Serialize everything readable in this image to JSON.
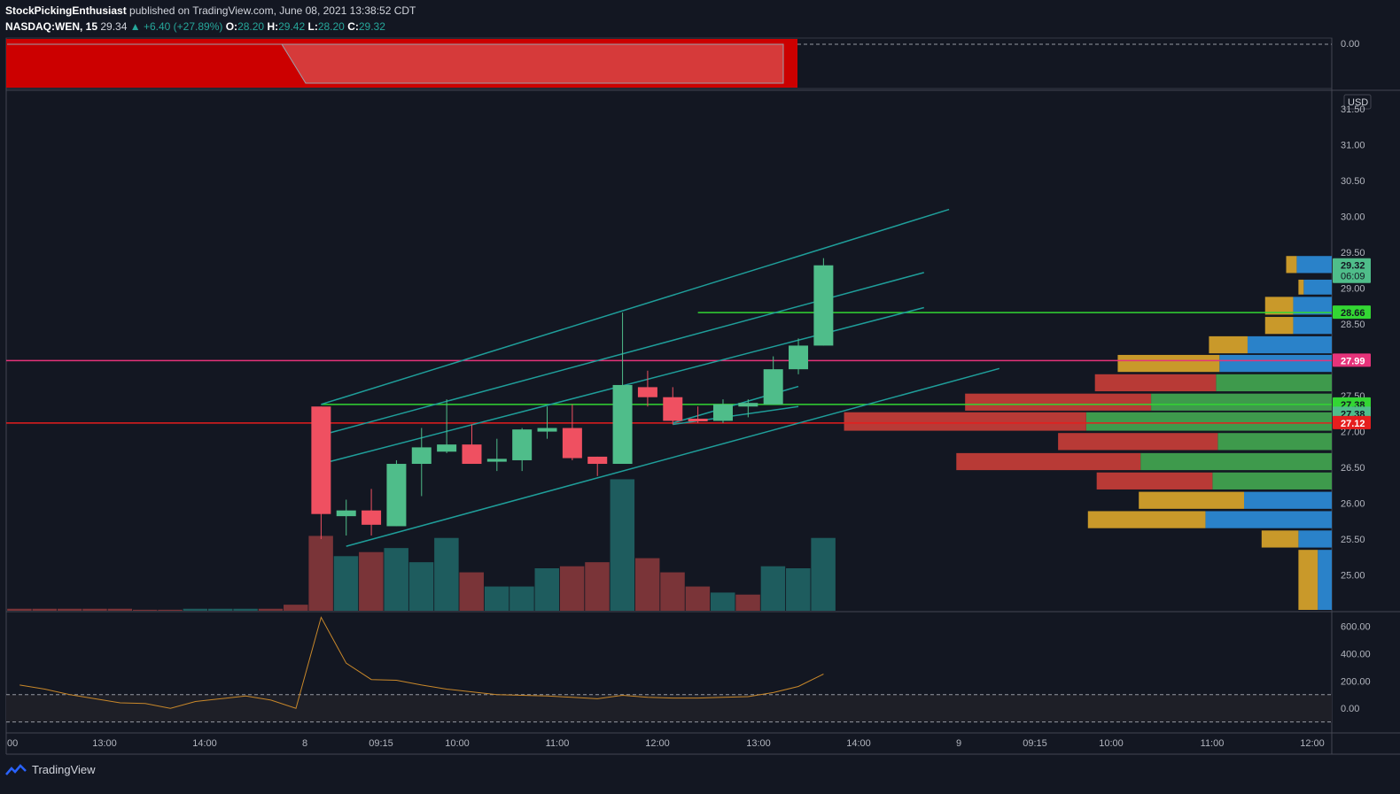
{
  "header": {
    "author": "StockPickingEnthusiast",
    "published": "published on TradingView.com, June 08, 2021 13:38:52 CDT",
    "symbol": "NASDAQ:WEN, 15",
    "last": "29.34",
    "change": "+6.40 (+27.89%)",
    "o_label": "O:",
    "o_value": "28.20",
    "h_label": "H:",
    "h_value": "29.42",
    "l_label": "L:",
    "l_value": "28.20",
    "c_label": "C:",
    "c_value": "29.32"
  },
  "footer": {
    "brand": "TradingView",
    "logo_icon": "tradingview-logo-icon"
  },
  "colors": {
    "bg": "#131722",
    "up": "#4fbd8a",
    "down": "#ef5061",
    "vol_up": "#1e5c5e",
    "vol_down": "#7a3438",
    "channel": "#1f9e9a",
    "level_green": "#33d633",
    "level_pink": "#e6337a",
    "level_red": "#e61e1e",
    "vp_red": "#b83a36",
    "vp_green": "#3e9a4c",
    "vp_gold": "#c9992a",
    "vp_blue": "#2a82c9"
  },
  "chart_data": {
    "type": "candlestick",
    "currency": "USD",
    "y_ticks": [
      "31.50",
      "31.00",
      "30.50",
      "30.00",
      "29.50",
      "29.00",
      "28.50",
      "28.00",
      "27.50",
      "27.00",
      "26.50",
      "26.00",
      "25.50",
      "25.00"
    ],
    "ylim": [
      24.5,
      31.75
    ],
    "x_ticks": [
      "00",
      "13:00",
      "14:00",
      "8",
      "09:15",
      "10:00",
      "11:00",
      "12:00",
      "13:00",
      "14:00",
      "9",
      "09:15",
      "10:00",
      "11:00",
      "12:00"
    ],
    "price_labels": [
      {
        "text": "29.32",
        "sub": "06:09",
        "price": 29.32,
        "color": "#4fbd8a"
      },
      {
        "text": "28.66",
        "price": 28.66,
        "color": "#33d633"
      },
      {
        "text": "27.99",
        "price": 27.99,
        "color": "#e6337a"
      },
      {
        "text": "27.38",
        "price": 27.38,
        "color": "#33d633"
      },
      {
        "text": "27.38",
        "price": 27.25,
        "color": "#4fbd8a"
      },
      {
        "text": "27.12",
        "price": 27.12,
        "color": "#e61e1e"
      }
    ],
    "levels": [
      {
        "price": 28.66,
        "color": "#33d633",
        "from": 27
      },
      {
        "price": 27.99,
        "color": "#e6337a",
        "from": 0
      },
      {
        "price": 27.38,
        "color": "#33d633",
        "from": 12
      },
      {
        "price": 27.12,
        "color": "#e61e1e",
        "from": 0
      }
    ],
    "candles": [
      {
        "t": 12,
        "o": 27.35,
        "h": 27.35,
        "l": 25.5,
        "c": 25.85
      },
      {
        "t": 13,
        "o": 25.82,
        "h": 26.05,
        "l": 25.55,
        "c": 25.9
      },
      {
        "t": 14,
        "o": 25.9,
        "h": 26.2,
        "l": 25.55,
        "c": 25.7
      },
      {
        "t": 15,
        "o": 25.68,
        "h": 26.6,
        "l": 25.68,
        "c": 26.55
      },
      {
        "t": 16,
        "o": 26.55,
        "h": 27.05,
        "l": 26.1,
        "c": 26.78
      },
      {
        "t": 17,
        "o": 26.72,
        "h": 27.45,
        "l": 26.7,
        "c": 26.82
      },
      {
        "t": 18,
        "o": 26.82,
        "h": 27.1,
        "l": 26.55,
        "c": 26.55
      },
      {
        "t": 19,
        "o": 26.58,
        "h": 26.9,
        "l": 26.45,
        "c": 26.62
      },
      {
        "t": 20,
        "o": 26.6,
        "h": 27.05,
        "l": 26.45,
        "c": 27.03
      },
      {
        "t": 21,
        "o": 27.0,
        "h": 27.35,
        "l": 26.9,
        "c": 27.05
      },
      {
        "t": 22,
        "o": 27.05,
        "h": 27.38,
        "l": 26.6,
        "c": 26.63
      },
      {
        "t": 23,
        "o": 26.65,
        "h": 26.65,
        "l": 26.38,
        "c": 26.55
      },
      {
        "t": 24,
        "o": 26.55,
        "h": 28.66,
        "l": 26.55,
        "c": 27.65
      },
      {
        "t": 25,
        "o": 27.62,
        "h": 27.85,
        "l": 27.35,
        "c": 27.48
      },
      {
        "t": 26,
        "o": 27.48,
        "h": 27.62,
        "l": 27.1,
        "c": 27.15
      },
      {
        "t": 27,
        "o": 27.18,
        "h": 27.35,
        "l": 27.12,
        "c": 27.15
      },
      {
        "t": 28,
        "o": 27.15,
        "h": 27.45,
        "l": 27.12,
        "c": 27.38
      },
      {
        "t": 29,
        "o": 27.35,
        "h": 27.45,
        "l": 27.2,
        "c": 27.4
      },
      {
        "t": 30,
        "o": 27.38,
        "h": 28.05,
        "l": 27.38,
        "c": 27.87
      },
      {
        "t": 31,
        "o": 27.87,
        "h": 28.3,
        "l": 27.8,
        "c": 28.2
      },
      {
        "t": 32,
        "o": 28.2,
        "h": 29.42,
        "l": 28.2,
        "c": 29.32
      }
    ],
    "volume": [
      {
        "t": 0,
        "v": 1,
        "up": false
      },
      {
        "t": 1,
        "v": 1,
        "up": false
      },
      {
        "t": 2,
        "v": 1,
        "up": false
      },
      {
        "t": 3,
        "v": 1,
        "up": false
      },
      {
        "t": 4,
        "v": 1,
        "up": false
      },
      {
        "t": 5,
        "v": 0.5,
        "up": false
      },
      {
        "t": 6,
        "v": 0.5,
        "up": false
      },
      {
        "t": 7,
        "v": 1,
        "up": true
      },
      {
        "t": 8,
        "v": 1,
        "up": true
      },
      {
        "t": 9,
        "v": 1,
        "up": true
      },
      {
        "t": 10,
        "v": 1,
        "up": false
      },
      {
        "t": 11,
        "v": 3,
        "up": false
      },
      {
        "t": 12,
        "v": 37,
        "up": false
      },
      {
        "t": 13,
        "v": 27,
        "up": true
      },
      {
        "t": 14,
        "v": 29,
        "up": false
      },
      {
        "t": 15,
        "v": 31,
        "up": true
      },
      {
        "t": 16,
        "v": 24,
        "up": true
      },
      {
        "t": 17,
        "v": 36,
        "up": true
      },
      {
        "t": 18,
        "v": 19,
        "up": false
      },
      {
        "t": 19,
        "v": 12,
        "up": true
      },
      {
        "t": 20,
        "v": 12,
        "up": true
      },
      {
        "t": 21,
        "v": 21,
        "up": true
      },
      {
        "t": 22,
        "v": 22,
        "up": false
      },
      {
        "t": 23,
        "v": 24,
        "up": false
      },
      {
        "t": 24,
        "v": 65,
        "up": true
      },
      {
        "t": 25,
        "v": 26,
        "up": false
      },
      {
        "t": 26,
        "v": 19,
        "up": false
      },
      {
        "t": 27,
        "v": 12,
        "up": false
      },
      {
        "t": 28,
        "v": 9,
        "up": true
      },
      {
        "t": 29,
        "v": 8,
        "up": false
      },
      {
        "t": 30,
        "v": 22,
        "up": true
      },
      {
        "t": 31,
        "v": 21,
        "up": true
      },
      {
        "t": 32,
        "v": 36,
        "up": true
      }
    ],
    "vmax": 70,
    "channel_lines": [
      {
        "t1": 12,
        "p1": 27.38,
        "t2": 37,
        "p2": 30.1
      },
      {
        "t1": 12,
        "p1": 26.95,
        "t2": 36,
        "p2": 29.22
      },
      {
        "t1": 12,
        "p1": 26.55,
        "t2": 36,
        "p2": 28.73
      },
      {
        "t1": 13,
        "p1": 25.4,
        "t2": 39,
        "p2": 27.88
      },
      {
        "t1": 26,
        "p1": 27.12,
        "t2": 31,
        "p2": 27.63
      },
      {
        "t1": 26,
        "p1": 27.1,
        "t2": 31,
        "p2": 27.35
      }
    ],
    "volume_profile": [
      {
        "top": 29.45,
        "bot": 29.2,
        "a": 6,
        "b": 20,
        "ac": "#c9992a",
        "bc": "#2a82c9"
      },
      {
        "top": 29.12,
        "bot": 28.9,
        "a": 3,
        "b": 16,
        "ac": "#c9992a",
        "bc": "#2a82c9"
      },
      {
        "top": 28.88,
        "bot": 28.62,
        "a": 16,
        "b": 22,
        "ac": "#c9992a",
        "bc": "#2a82c9"
      },
      {
        "top": 28.6,
        "bot": 28.35,
        "a": 16,
        "b": 22,
        "ac": "#c9992a",
        "bc": "#2a82c9"
      },
      {
        "top": 28.33,
        "bot": 28.08,
        "a": 22,
        "b": 48,
        "ac": "#c9992a",
        "bc": "#2a82c9"
      },
      {
        "top": 28.07,
        "bot": 27.82,
        "a": 58,
        "b": 64,
        "ac": "#c9992a",
        "bc": "#2a82c9"
      },
      {
        "top": 27.8,
        "bot": 27.55,
        "a": 69,
        "b": 66,
        "ac": "#b83a36",
        "bc": "#3e9a4c"
      },
      {
        "top": 27.53,
        "bot": 27.28,
        "a": 106,
        "b": 103,
        "ac": "#b83a36",
        "bc": "#3e9a4c"
      },
      {
        "top": 27.27,
        "bot": 27.0,
        "a": 138,
        "b": 140,
        "ac": "#b83a36",
        "bc": "#3e9a4c"
      },
      {
        "top": 26.98,
        "bot": 26.73,
        "a": 91,
        "b": 65,
        "ac": "#b83a36",
        "bc": "#3e9a4c"
      },
      {
        "top": 26.7,
        "bot": 26.45,
        "a": 105,
        "b": 109,
        "ac": "#b83a36",
        "bc": "#3e9a4c"
      },
      {
        "top": 26.43,
        "bot": 26.18,
        "a": 66,
        "b": 68,
        "ac": "#b83a36",
        "bc": "#3e9a4c"
      },
      {
        "top": 26.16,
        "bot": 25.91,
        "a": 60,
        "b": 50,
        "ac": "#c9992a",
        "bc": "#2a82c9"
      },
      {
        "top": 25.89,
        "bot": 25.64,
        "a": 67,
        "b": 72,
        "ac": "#c9992a",
        "bc": "#2a82c9"
      },
      {
        "top": 25.62,
        "bot": 25.37,
        "a": 21,
        "b": 19,
        "ac": "#c9992a",
        "bc": "#2a82c9"
      },
      {
        "top": 25.35,
        "bot": 24.5,
        "a": 11,
        "b": 8,
        "ac": "#c9992a",
        "bc": "#2a82c9"
      }
    ],
    "oscillator": {
      "y_ticks": [
        "600.00",
        "400.00",
        "200.00",
        "0.00"
      ],
      "ylim": [
        -180,
        700
      ],
      "upper_band": 100,
      "lower_band": -100,
      "color": "#c9882a",
      "points": [
        [
          0,
          170
        ],
        [
          1,
          140
        ],
        [
          2,
          100
        ],
        [
          3,
          70
        ],
        [
          4,
          40
        ],
        [
          5,
          35
        ],
        [
          6,
          0
        ],
        [
          7,
          50
        ],
        [
          8,
          70
        ],
        [
          9,
          90
        ],
        [
          10,
          60
        ],
        [
          11,
          0
        ],
        [
          12,
          665
        ],
        [
          13,
          330
        ],
        [
          14,
          210
        ],
        [
          15,
          205
        ],
        [
          16,
          170
        ],
        [
          17,
          140
        ],
        [
          18,
          120
        ],
        [
          19,
          100
        ],
        [
          20,
          95
        ],
        [
          21,
          90
        ],
        [
          22,
          80
        ],
        [
          23,
          70
        ],
        [
          24,
          95
        ],
        [
          25,
          80
        ],
        [
          26,
          75
        ],
        [
          27,
          75
        ],
        [
          28,
          80
        ],
        [
          29,
          85
        ],
        [
          30,
          115
        ],
        [
          31,
          160
        ],
        [
          32,
          250
        ]
      ]
    },
    "top_indicator": {
      "y_ticks": [
        "0.00"
      ]
    }
  }
}
